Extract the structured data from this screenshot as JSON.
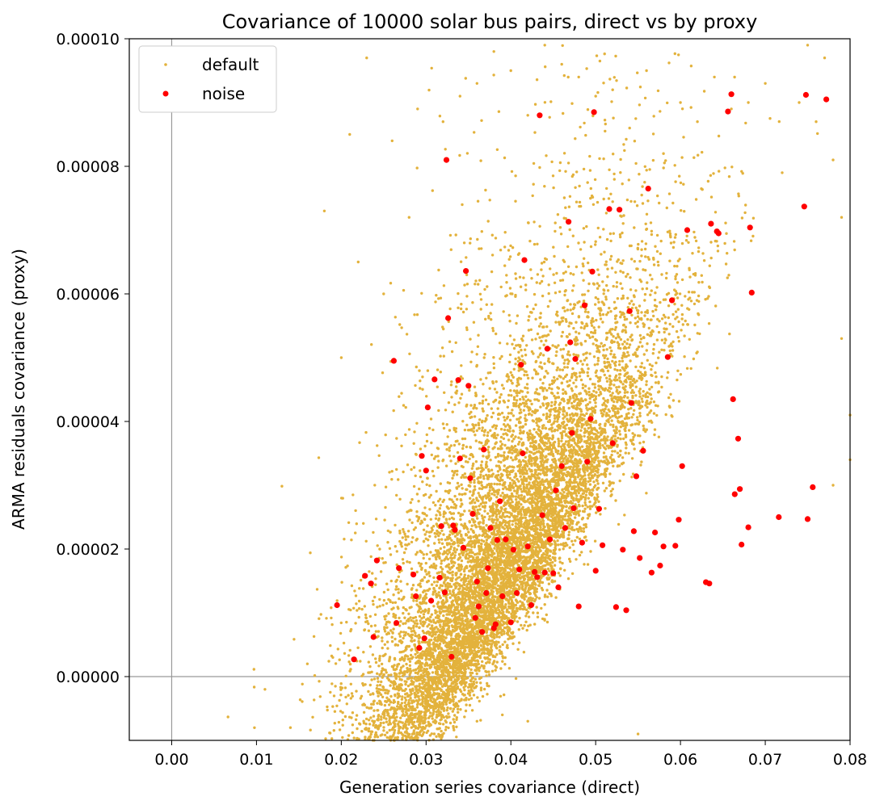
{
  "chart_data": {
    "type": "scatter",
    "title": "Covariance of 10000 solar bus pairs, direct vs by proxy",
    "xlabel": "Generation series covariance (direct)",
    "ylabel": "ARMA residuals covariance (proxy)",
    "xlim": [
      -0.005,
      0.08
    ],
    "ylim": [
      -1e-05,
      0.0001
    ],
    "xticks": [
      "0.00",
      "0.01",
      "0.02",
      "0.03",
      "0.04",
      "0.05",
      "0.06",
      "0.07",
      "0.08"
    ],
    "yticks": [
      "0.00000",
      "0.00002",
      "0.00004",
      "0.00006",
      "0.00008",
      "0.00010"
    ],
    "reference_lines": {
      "x": 0,
      "y": 0
    },
    "grid": false,
    "legend_position": "top-left",
    "series": [
      {
        "name": "default",
        "color": "#E3B23C",
        "marker_size": "small",
        "count": 10000,
        "cluster_center": [
          0.038,
          1.3e-05
        ],
        "points": [
          [
            0.011,
            -2e-06
          ],
          [
            0.014,
            -8e-06
          ],
          [
            0.016,
            2e-06
          ],
          [
            0.018,
            7.3e-05
          ],
          [
            0.019,
            3e-06
          ],
          [
            0.02,
            5e-05
          ],
          [
            0.021,
            8.5e-05
          ],
          [
            0.022,
            6.5e-05
          ],
          [
            0.023,
            9.7e-05
          ],
          [
            0.024,
            8e-06
          ],
          [
            0.025,
            6e-05
          ],
          [
            0.026,
            8.4e-05
          ],
          [
            0.028,
            7.2e-05
          ],
          [
            0.029,
            8.9e-05
          ],
          [
            0.03,
            4e-06
          ],
          [
            0.032,
            8.7e-05
          ],
          [
            0.034,
            9.1e-05
          ],
          [
            0.036,
            9.3e-05
          ],
          [
            0.038,
            9.8e-05
          ],
          [
            0.04,
            9.5e-05
          ],
          [
            0.042,
            8.8e-05
          ],
          [
            0.044,
            9.9e-05
          ],
          [
            0.046,
            9.6e-05
          ],
          [
            0.048,
            9.4e-05
          ],
          [
            0.05,
            9.1e-05
          ],
          [
            0.052,
            9.2e-05
          ],
          [
            0.054,
            8.6e-05
          ],
          [
            0.055,
            -9e-06
          ],
          [
            0.056,
            9.5e-05
          ],
          [
            0.058,
            8.2e-05
          ],
          [
            0.06,
            9e-05
          ],
          [
            0.062,
            8.7e-05
          ],
          [
            0.064,
            9.4e-05
          ],
          [
            0.066,
            8.9e-05
          ],
          [
            0.068,
            9e-05
          ],
          [
            0.07,
            9.3e-05
          ],
          [
            0.072,
            7.9e-05
          ],
          [
            0.074,
            9e-05
          ],
          [
            0.075,
            9.9e-05
          ],
          [
            0.076,
            8.7e-05
          ],
          [
            0.077,
            9.7e-05
          ],
          [
            0.078,
            8.1e-05
          ],
          [
            0.079,
            7.2e-05
          ],
          [
            0.079,
            5.3e-05
          ],
          [
            0.08,
            3.4e-05
          ],
          [
            0.078,
            3e-05
          ],
          [
            0.08,
            4.1e-05
          ],
          [
            0.036,
            -7e-06
          ],
          [
            0.039,
            -6e-06
          ],
          [
            0.042,
            -7e-06
          ]
        ]
      },
      {
        "name": "noise",
        "color": "#FF0000",
        "marker_size": "medium",
        "points": [
          [
            0.0195,
            1.12e-05
          ],
          [
            0.0215,
            2.7e-06
          ],
          [
            0.0228,
            1.58e-05
          ],
          [
            0.0235,
            1.46e-05
          ],
          [
            0.0238,
            6.2e-06
          ],
          [
            0.0242,
            1.82e-05
          ],
          [
            0.0262,
            4.95e-05
          ],
          [
            0.0265,
            8.4e-06
          ],
          [
            0.0268,
            1.7e-05
          ],
          [
            0.0285,
            1.6e-05
          ],
          [
            0.0288,
            1.26e-05
          ],
          [
            0.0292,
            4.5e-06
          ],
          [
            0.0295,
            3.46e-05
          ],
          [
            0.0298,
            6e-06
          ],
          [
            0.03,
            3.23e-05
          ],
          [
            0.0302,
            4.22e-05
          ],
          [
            0.0306,
            1.19e-05
          ],
          [
            0.031,
            4.66e-05
          ],
          [
            0.0316,
            1.55e-05
          ],
          [
            0.0318,
            2.36e-05
          ],
          [
            0.0322,
            1.32e-05
          ],
          [
            0.0324,
            8.1e-05
          ],
          [
            0.0326,
            5.62e-05
          ],
          [
            0.033,
            3.1e-06
          ],
          [
            0.0332,
            2.37e-05
          ],
          [
            0.0334,
            2.3e-05
          ],
          [
            0.0338,
            4.65e-05
          ],
          [
            0.034,
            3.42e-05
          ],
          [
            0.0344,
            2.02e-05
          ],
          [
            0.0347,
            6.36e-05
          ],
          [
            0.035,
            4.56e-05
          ],
          [
            0.0352,
            3.11e-05
          ],
          [
            0.0355,
            2.55e-05
          ],
          [
            0.0358,
            9.2e-06
          ],
          [
            0.036,
            1.49e-05
          ],
          [
            0.0362,
            1.1e-05
          ],
          [
            0.0366,
            7e-06
          ],
          [
            0.0368,
            3.56e-05
          ],
          [
            0.0371,
            1.31e-05
          ],
          [
            0.0373,
            1.7e-05
          ],
          [
            0.0376,
            2.33e-05
          ],
          [
            0.038,
            7.6e-06
          ],
          [
            0.0382,
            8.2e-06
          ],
          [
            0.0384,
            2.14e-05
          ],
          [
            0.0387,
            2.75e-05
          ],
          [
            0.039,
            1.26e-05
          ],
          [
            0.0394,
            2.15e-05
          ],
          [
            0.04,
            8.5e-06
          ],
          [
            0.0403,
            1.99e-05
          ],
          [
            0.0407,
            1.31e-05
          ],
          [
            0.041,
            1.68e-05
          ],
          [
            0.0412,
            4.89e-05
          ],
          [
            0.0414,
            3.5e-05
          ],
          [
            0.0416,
            6.53e-05
          ],
          [
            0.042,
            2.04e-05
          ],
          [
            0.0424,
            1.12e-05
          ],
          [
            0.0428,
            1.64e-05
          ],
          [
            0.0431,
            1.56e-05
          ],
          [
            0.0434,
            8.8e-05
          ],
          [
            0.0437,
            2.53e-05
          ],
          [
            0.044,
            1.63e-05
          ],
          [
            0.0443,
            5.14e-05
          ],
          [
            0.0446,
            2.15e-05
          ],
          [
            0.045,
            1.62e-05
          ],
          [
            0.0453,
            2.92e-05
          ],
          [
            0.0456,
            1.4e-05
          ],
          [
            0.046,
            3.3e-05
          ],
          [
            0.0464,
            2.33e-05
          ],
          [
            0.0468,
            7.13e-05
          ],
          [
            0.047,
            5.24e-05
          ],
          [
            0.0472,
            3.82e-05
          ],
          [
            0.0474,
            2.64e-05
          ],
          [
            0.0476,
            4.98e-05
          ],
          [
            0.048,
            1.1e-05
          ],
          [
            0.0484,
            2.1e-05
          ],
          [
            0.0487,
            5.82e-05
          ],
          [
            0.049,
            3.37e-05
          ],
          [
            0.0494,
            4.04e-05
          ],
          [
            0.0496,
            6.35e-05
          ],
          [
            0.0498,
            8.85e-05
          ],
          [
            0.05,
            1.66e-05
          ],
          [
            0.0504,
            2.63e-05
          ],
          [
            0.0508,
            2.06e-05
          ],
          [
            0.0516,
            7.33e-05
          ],
          [
            0.052,
            3.66e-05
          ],
          [
            0.0524,
            1.09e-05
          ],
          [
            0.0528,
            7.32e-05
          ],
          [
            0.0532,
            1.99e-05
          ],
          [
            0.0536,
            1.04e-05
          ],
          [
            0.054,
            5.73e-05
          ],
          [
            0.0542,
            4.29e-05
          ],
          [
            0.0545,
            2.28e-05
          ],
          [
            0.0548,
            3.14e-05
          ],
          [
            0.0552,
            1.86e-05
          ],
          [
            0.0556,
            3.54e-05
          ],
          [
            0.0562,
            7.65e-05
          ],
          [
            0.0566,
            1.63e-05
          ],
          [
            0.057,
            2.26e-05
          ],
          [
            0.0576,
            1.74e-05
          ],
          [
            0.058,
            2.04e-05
          ],
          [
            0.0585,
            5.01e-05
          ],
          [
            0.059,
            5.9e-05
          ],
          [
            0.0594,
            2.05e-05
          ],
          [
            0.0598,
            2.46e-05
          ],
          [
            0.0602,
            3.3e-05
          ],
          [
            0.0608,
            7e-05
          ],
          [
            0.063,
            1.48e-05
          ],
          [
            0.0634,
            1.46e-05
          ],
          [
            0.0636,
            7.1e-05
          ],
          [
            0.0643,
            6.98e-05
          ],
          [
            0.0645,
            6.95e-05
          ],
          [
            0.0656,
            8.86e-05
          ],
          [
            0.066,
            9.13e-05
          ],
          [
            0.0662,
            4.35e-05
          ],
          [
            0.0664,
            2.86e-05
          ],
          [
            0.0668,
            3.73e-05
          ],
          [
            0.067,
            2.94e-05
          ],
          [
            0.0672,
            2.07e-05
          ],
          [
            0.068,
            2.34e-05
          ],
          [
            0.0682,
            7.04e-05
          ],
          [
            0.0684,
            6.02e-05
          ],
          [
            0.0716,
            2.5e-05
          ],
          [
            0.0746,
            7.37e-05
          ],
          [
            0.0748,
            9.12e-05
          ],
          [
            0.075,
            2.47e-05
          ],
          [
            0.0756,
            2.97e-05
          ],
          [
            0.0772,
            9.05e-05
          ]
        ]
      }
    ]
  }
}
